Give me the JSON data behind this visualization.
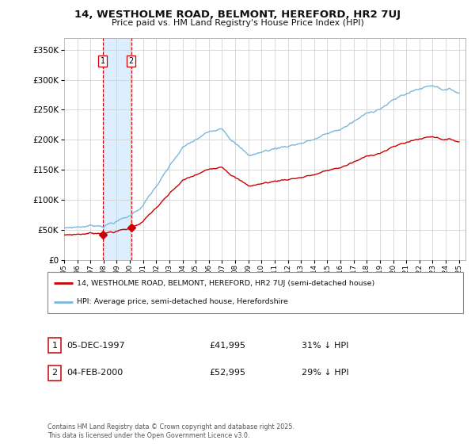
{
  "title": "14, WESTHOLME ROAD, BELMONT, HEREFORD, HR2 7UJ",
  "subtitle": "Price paid vs. HM Land Registry's House Price Index (HPI)",
  "legend_line1": "14, WESTHOLME ROAD, BELMONT, HEREFORD, HR2 7UJ (semi-detached house)",
  "legend_line2": "HPI: Average price, semi-detached house, Herefordshire",
  "sale1_date": "05-DEC-1997",
  "sale1_price": 41995,
  "sale1_hpi_text": "31% ↓ HPI",
  "sale2_date": "04-FEB-2000",
  "sale2_price": 52995,
  "sale2_hpi_text": "29% ↓ HPI",
  "footer": "Contains HM Land Registry data © Crown copyright and database right 2025.\nThis data is licensed under the Open Government Licence v3.0.",
  "hpi_color": "#7ab8d9",
  "price_color": "#cc0000",
  "vline_color": "#cc0000",
  "shade_color": "#ddeeff",
  "ylim_min": 0,
  "ylim_max": 370000,
  "yticks": [
    0,
    50000,
    100000,
    150000,
    200000,
    250000,
    300000,
    350000
  ],
  "xmin": 1995,
  "xmax": 2025.5,
  "background_color": "#ffffff",
  "grid_color": "#cccccc",
  "sale1_year": 1997.92,
  "sale2_year": 2000.09
}
